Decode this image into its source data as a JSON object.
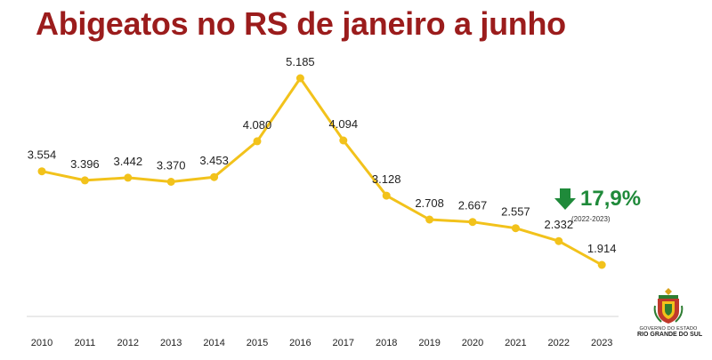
{
  "title": "Abigeatos no RS de janeiro a junho",
  "colors": {
    "title": "#9b1c1c",
    "line": "#f2c21b",
    "delta": "#1f8a3a"
  },
  "delta": {
    "icon": "arrow-down-icon",
    "value": "17,9%",
    "note": "(2022-2023)"
  },
  "emblem": {
    "line1": "GOVERNO DO ESTADO",
    "line2": "RIO GRANDE DO SUL"
  },
  "chart_data": {
    "type": "line",
    "categories": [
      "2010",
      "2011",
      "2012",
      "2013",
      "2014",
      "2015",
      "2016",
      "2017",
      "2018",
      "2019",
      "2020",
      "2021",
      "2022",
      "2023"
    ],
    "values": [
      3554,
      3396,
      3442,
      3370,
      3453,
      4080,
      5185,
      4094,
      3128,
      2708,
      2667,
      2557,
      2332,
      1914
    ],
    "value_labels": [
      "3.554",
      "3.396",
      "3.442",
      "3.370",
      "3.453",
      "4.080",
      "5.185",
      "4.094",
      "3.128",
      "2.708",
      "2.667",
      "2.557",
      "2.332",
      "1.914"
    ],
    "grid": false
  }
}
